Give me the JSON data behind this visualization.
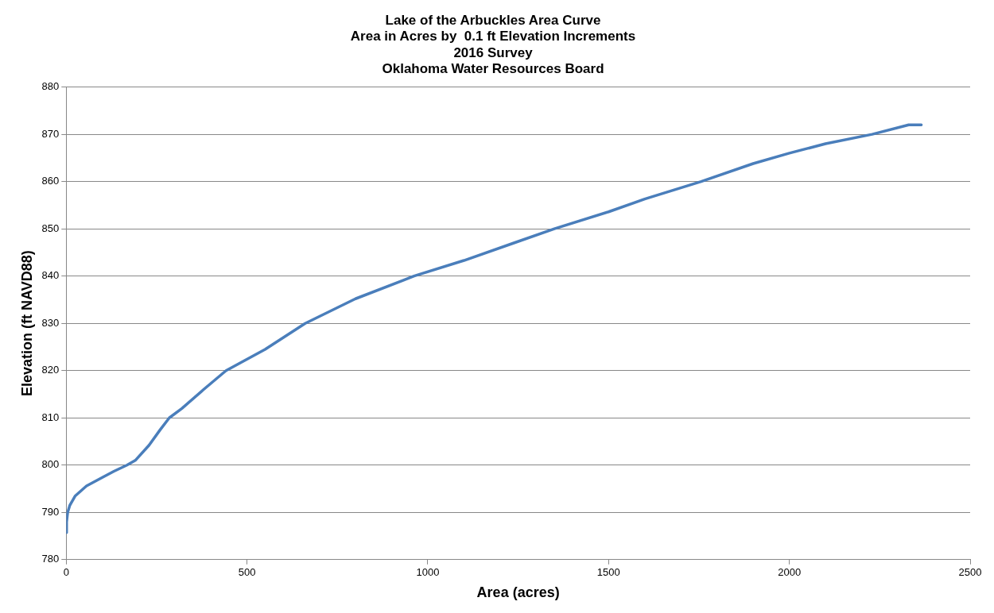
{
  "chart_data": {
    "type": "line",
    "title": "Lake of the Arbuckles Area Curve\nArea in Acres by  0.1 ft Elevation Increments\n2016 Survey\nOklahoma Water Resources Board",
    "xlabel": "Area (acres)",
    "ylabel": "Elevation (ft NAVD88)",
    "xlim": [
      0,
      2500
    ],
    "xticks": [
      0,
      500,
      1000,
      1500,
      2000,
      2500
    ],
    "ylim": [
      780,
      880
    ],
    "yticks": [
      780,
      790,
      800,
      810,
      820,
      830,
      840,
      850,
      860,
      870,
      880
    ],
    "grid": "y",
    "legend": false,
    "marker": "none",
    "line_style": "solid",
    "series": [
      {
        "color": "#4a7ebb",
        "x": [
          0,
          1,
          4,
          10,
          25,
          56,
          100,
          132,
          168,
          191,
          229,
          260,
          285,
          320,
          380,
          442,
          550,
          661,
          800,
          962,
          1100,
          1238,
          1350,
          1500,
          1600,
          1756,
          1900,
          2000,
          2100,
          2229,
          2330,
          2365
        ],
        "values": [
          785.7,
          788,
          790,
          791.5,
          793.5,
          795.6,
          797.4,
          798.7,
          800,
          801,
          804.2,
          807.5,
          810,
          812,
          816,
          820,
          824.5,
          830,
          835.2,
          840,
          843.3,
          847,
          850,
          853.6,
          856.3,
          860,
          863.8,
          866,
          868,
          870,
          872,
          872
        ]
      }
    ]
  }
}
